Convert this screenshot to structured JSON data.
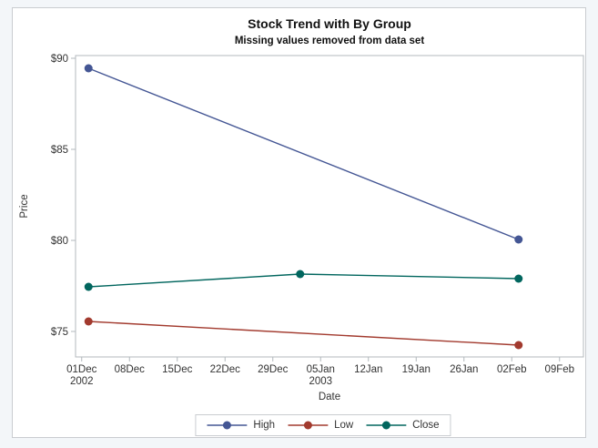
{
  "figure": {
    "title": "Stock Trend with By Group",
    "subtitle": "Missing values removed from data set"
  },
  "chart_data": {
    "type": "line",
    "title": "Stock Trend with By Group",
    "subtitle": "Missing values removed from data set",
    "xlabel": "Date",
    "ylabel": "Price",
    "grid": false,
    "legend_position": "bottom-center",
    "x_axis": {
      "tick_days": [
        0,
        7,
        14,
        21,
        28,
        35,
        42,
        49,
        56,
        63,
        70
      ],
      "tick_labels": [
        "01Dec",
        "08Dec",
        "15Dec",
        "22Dec",
        "29Dec",
        "05Jan",
        "12Jan",
        "19Jan",
        "26Jan",
        "02Feb",
        "09Feb"
      ],
      "tick_sublabels": [
        "2002",
        "",
        "",
        "",
        "",
        "2003",
        "",
        "",
        "",
        "",
        ""
      ],
      "xlim_days": [
        -0.9,
        73.5
      ]
    },
    "y_axis": {
      "tick_values": [
        75,
        80,
        85,
        90
      ],
      "tick_labels": [
        "$75",
        "$80",
        "$85",
        "$90"
      ],
      "ylim": [
        73.6,
        90.15
      ]
    },
    "series": [
      {
        "name": "High",
        "color": "#445694",
        "x_days": [
          1,
          64
        ],
        "values": [
          89.45,
          80.05
        ]
      },
      {
        "name": "Low",
        "color": "#A23A2E",
        "x_days": [
          1,
          64
        ],
        "values": [
          75.55,
          74.25
        ]
      },
      {
        "name": "Close",
        "color": "#01665E",
        "x_days": [
          1,
          32,
          64
        ],
        "values": [
          77.45,
          78.15,
          77.9
        ]
      }
    ],
    "axis_text_color": "#333333",
    "frame_color": "#b3b8bd"
  }
}
